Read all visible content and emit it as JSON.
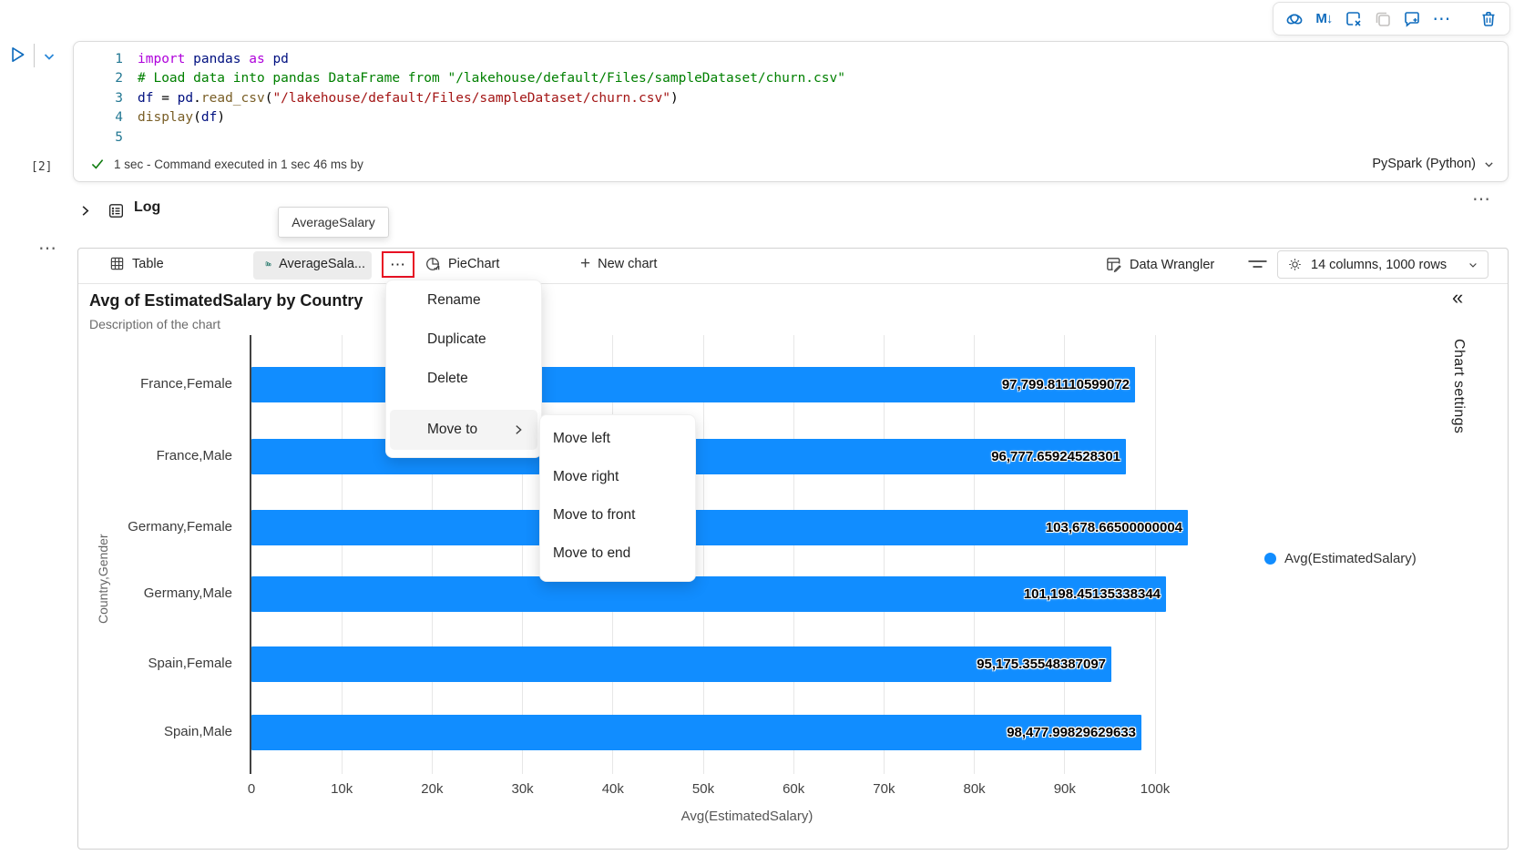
{
  "icons": {
    "more": "⋯",
    "markdown": "M↓",
    "plus": "+",
    "collapse": "«"
  },
  "toolbar": {
    "buttons": [
      "copilot",
      "convert-to-markdown",
      "clear-cell-output",
      "duplicate-cell",
      "add-comment",
      "more-options",
      "delete-cell"
    ]
  },
  "cell": {
    "exec_count": "[2]",
    "code_lines": [
      [
        [
          "import",
          "kw"
        ],
        [
          " ",
          "pl"
        ],
        [
          "pandas",
          "id"
        ],
        [
          " ",
          "pl"
        ],
        [
          "as",
          "kw"
        ],
        [
          " ",
          "pl"
        ],
        [
          "pd",
          "id"
        ]
      ],
      [
        [
          "# Load data into pandas DataFrame from \"/lakehouse/default/Files/sampleDataset/churn.csv\"",
          "cm"
        ]
      ],
      [
        [
          "df",
          "id"
        ],
        [
          " ",
          "pl"
        ],
        [
          "=",
          "pl"
        ],
        [
          " ",
          "pl"
        ],
        [
          "pd",
          "id"
        ],
        [
          ".",
          "pl"
        ],
        [
          "read_csv",
          "fn"
        ],
        [
          "(",
          "pl"
        ],
        [
          "\"/lakehouse/default/Files/sampleDataset/churn.csv\"",
          "st"
        ],
        [
          ")",
          "pl"
        ]
      ],
      [
        [
          "display",
          "fn"
        ],
        [
          "(",
          "pl"
        ],
        [
          "df",
          "id"
        ],
        [
          ")",
          "pl"
        ]
      ],
      []
    ],
    "status": {
      "text": "1 sec - Command executed in 1 sec 46 ms by",
      "kernel": "PySpark (Python)"
    }
  },
  "log": {
    "label": "Log"
  },
  "tooltip": {
    "text": "AverageSalary"
  },
  "tabs": {
    "table": "Table",
    "chart": "AverageSala...",
    "pie": "PieChart",
    "new_chart": "New chart",
    "data_wrangler": "Data Wrangler",
    "dims": "14 columns, 1000 rows"
  },
  "menu": {
    "items": [
      "Rename",
      "Duplicate",
      "Delete"
    ],
    "move_to": "Move to",
    "submenu": [
      "Move left",
      "Move right",
      "Move to front",
      "Move to end"
    ]
  },
  "chart_data": {
    "type": "bar",
    "orientation": "horizontal",
    "title": "Avg of EstimatedSalary by Country",
    "subtitle": "Description of the chart",
    "categories": [
      "France,Female",
      "France,Male",
      "Germany,Female",
      "Germany,Male",
      "Spain,Female",
      "Spain,Male"
    ],
    "values": [
      97799.81110599072,
      96777.65924528301,
      103678.66500000004,
      101198.45135338344,
      95175.35548387097,
      98477.99829629633
    ],
    "value_labels": [
      "97,799.81110599072",
      "96,777.65924528301",
      "103,678.66500000004",
      "101,198.45135338344",
      "95,175.35548387097",
      "98,477.99829629633"
    ],
    "xlabel": "Avg(EstimatedSalary)",
    "ylabel": "Country,Gender",
    "x_ticks": [
      "0",
      "10k",
      "20k",
      "30k",
      "40k",
      "50k",
      "60k",
      "70k",
      "80k",
      "90k",
      "100k"
    ],
    "x_tick_values": [
      0,
      10000,
      20000,
      30000,
      40000,
      50000,
      60000,
      70000,
      80000,
      90000,
      100000
    ],
    "xlim": [
      0,
      106000
    ],
    "grid": true,
    "legend": [
      "Avg(EstimatedSalary)"
    ],
    "legend_position": "right",
    "bar_color": "#118DFF"
  },
  "side_panel": {
    "label": "Chart settings"
  }
}
